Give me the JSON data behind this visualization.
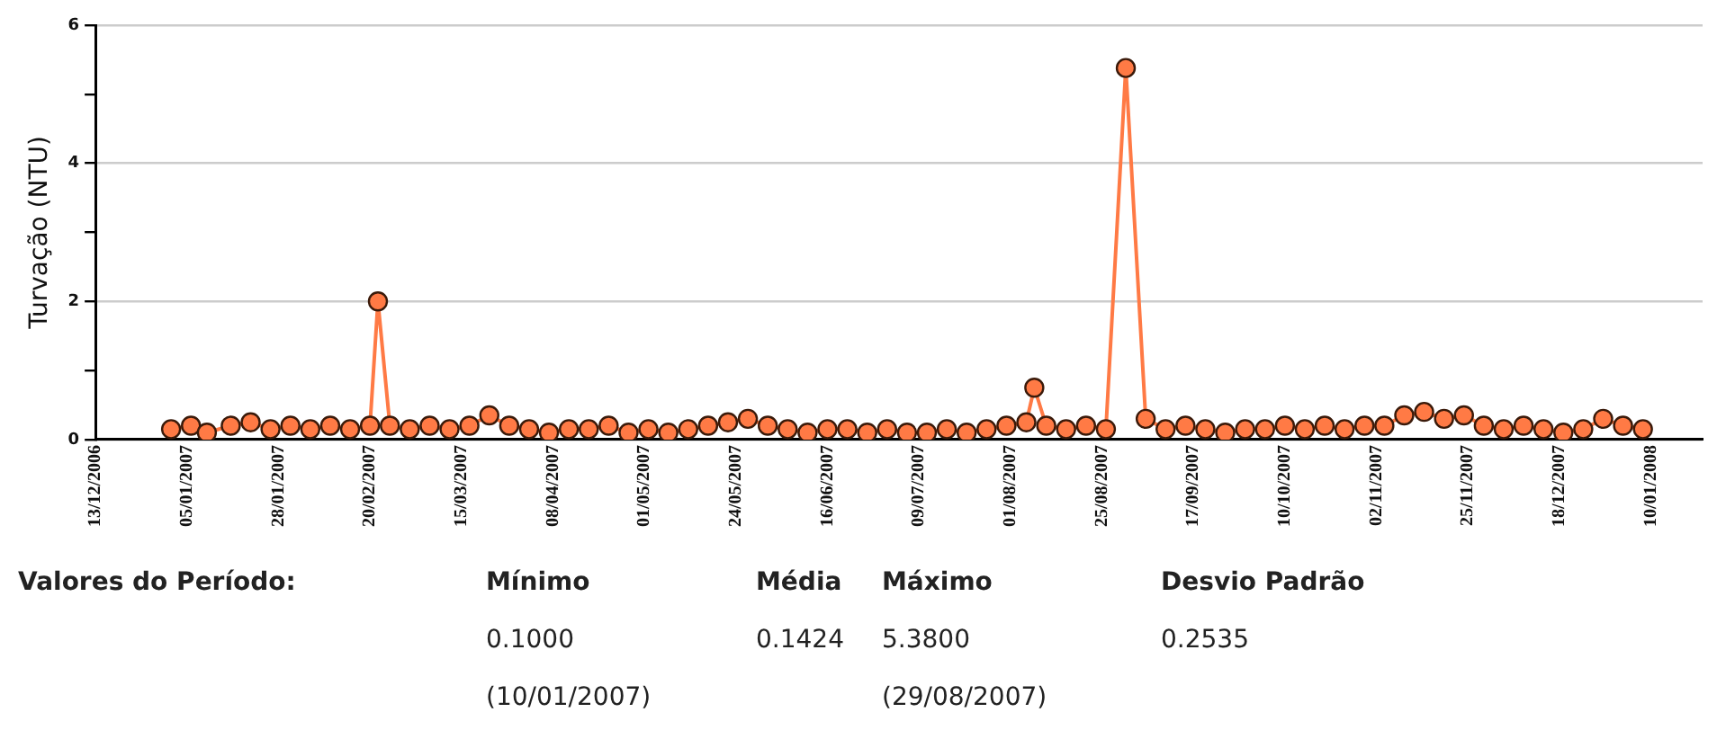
{
  "chart_data": {
    "type": "line",
    "ylabel": "Turvação (NTU)",
    "xlim": [
      "2006-12-13",
      "2008-01-21"
    ],
    "xticks": [
      {
        "value": "2006-12-13",
        "label": "13/12/2006"
      },
      {
        "value": "2007-01-05",
        "label": "05/01/2007"
      },
      {
        "value": "2007-01-28",
        "label": "28/01/2007"
      },
      {
        "value": "2007-02-20",
        "label": "20/02/2007"
      },
      {
        "value": "2007-03-15",
        "label": "15/03/2007"
      },
      {
        "value": "2007-04-07",
        "label": "08/04/2007"
      },
      {
        "value": "2007-04-30",
        "label": "01/05/2007"
      },
      {
        "value": "2007-05-23",
        "label": "24/05/2007"
      },
      {
        "value": "2007-06-15",
        "label": "16/06/2007"
      },
      {
        "value": "2007-07-08",
        "label": "09/07/2007"
      },
      {
        "value": "2007-07-31",
        "label": "01/08/2007"
      },
      {
        "value": "2007-08-23",
        "label": "25/08/2007"
      },
      {
        "value": "2007-09-15",
        "label": "17/09/2007"
      },
      {
        "value": "2007-10-08",
        "label": "10/10/2007"
      },
      {
        "value": "2007-10-31",
        "label": "02/11/2007"
      },
      {
        "value": "2007-11-23",
        "label": "25/11/2007"
      },
      {
        "value": "2007-12-16",
        "label": "18/12/2007"
      },
      {
        "value": "2008-01-08",
        "label": "10/01/2008"
      }
    ],
    "ylim": [
      0,
      6
    ],
    "yticks": [
      0,
      {
        "value": 1,
        "label": null
      },
      2,
      {
        "value": 3,
        "label": null
      },
      4,
      {
        "value": 5,
        "label": null
      },
      6
    ],
    "grid": "y",
    "marker": "circle",
    "line_style": "solid",
    "x": [
      "2007-01-01",
      "2007-01-06",
      "2007-01-10",
      "2007-01-16",
      "2007-01-21",
      "2007-01-26",
      "2007-01-31",
      "2007-02-05",
      "2007-02-10",
      "2007-02-15",
      "2007-02-20",
      "2007-02-22",
      "2007-02-25",
      "2007-03-02",
      "2007-03-07",
      "2007-03-12",
      "2007-03-17",
      "2007-03-22",
      "2007-03-27",
      "2007-04-01",
      "2007-04-06",
      "2007-04-11",
      "2007-04-16",
      "2007-04-21",
      "2007-04-26",
      "2007-05-01",
      "2007-05-06",
      "2007-05-11",
      "2007-05-16",
      "2007-05-21",
      "2007-05-26",
      "2007-05-31",
      "2007-06-05",
      "2007-06-10",
      "2007-06-15",
      "2007-06-20",
      "2007-06-25",
      "2007-06-30",
      "2007-07-05",
      "2007-07-10",
      "2007-07-15",
      "2007-07-20",
      "2007-07-25",
      "2007-07-30",
      "2007-08-04",
      "2007-08-06",
      "2007-08-09",
      "2007-08-14",
      "2007-08-19",
      "2007-08-24",
      "2007-08-29",
      "2007-09-03",
      "2007-09-08",
      "2007-09-13",
      "2007-09-18",
      "2007-09-23",
      "2007-09-28",
      "2007-10-03",
      "2007-10-08",
      "2007-10-13",
      "2007-10-18",
      "2007-10-23",
      "2007-10-28",
      "2007-11-02",
      "2007-11-07",
      "2007-11-12",
      "2007-11-17",
      "2007-11-22",
      "2007-11-27",
      "2007-12-02",
      "2007-12-07",
      "2007-12-12",
      "2007-12-17",
      "2007-12-22",
      "2007-12-27",
      "2008-01-01",
      "2008-01-06"
    ],
    "series": [
      {
        "color": "#ff7a45",
        "values": [
          0.15,
          0.2,
          0.1,
          0.2,
          0.25,
          0.15,
          0.2,
          0.15,
          0.2,
          0.15,
          0.2,
          2.0,
          0.2,
          0.15,
          0.2,
          0.15,
          0.2,
          0.35,
          0.2,
          0.15,
          0.1,
          0.15,
          0.15,
          0.2,
          0.1,
          0.15,
          0.1,
          0.15,
          0.2,
          0.25,
          0.3,
          0.2,
          0.15,
          0.1,
          0.15,
          0.15,
          0.1,
          0.15,
          0.1,
          0.1,
          0.15,
          0.1,
          0.15,
          0.2,
          0.25,
          0.75,
          0.2,
          0.15,
          0.2,
          0.15,
          5.38,
          0.3,
          0.15,
          0.2,
          0.15,
          0.1,
          0.15,
          0.15,
          0.2,
          0.15,
          0.2,
          0.15,
          0.2,
          0.2,
          0.35,
          0.4,
          0.3,
          0.35,
          0.2,
          0.15,
          0.2,
          0.15,
          0.1,
          0.15,
          0.3,
          0.2,
          0.15
        ]
      }
    ],
    "annotations": [
      "Valores do Período:",
      "Mínimo",
      "Média",
      "Máximo",
      "Desvio Padrão",
      "0.1000",
      "0.1424",
      "5.3800",
      "0.2535",
      "(10/01/2007)",
      "(29/08/2007)"
    ]
  }
}
